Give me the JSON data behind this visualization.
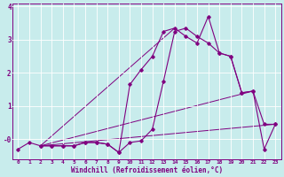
{
  "xlabel": "Windchill (Refroidissement éolien,°C)",
  "bg_color": "#c8ecec",
  "line_color": "#800080",
  "grid_color": "#aaaaaa",
  "ylim": [
    -0.6,
    4.1
  ],
  "xlim": [
    -0.5,
    23.5
  ],
  "yticks": [
    0,
    1,
    2,
    3,
    4
  ],
  "ytick_labels": [
    "-0",
    "1",
    "2",
    "3",
    "4"
  ],
  "xticks": [
    0,
    1,
    2,
    3,
    4,
    5,
    6,
    7,
    8,
    9,
    10,
    11,
    12,
    13,
    14,
    15,
    16,
    17,
    18,
    19,
    20,
    21,
    22,
    23
  ],
  "line1_x": [
    0,
    1,
    2,
    3,
    4,
    5,
    6,
    7,
    8,
    9,
    10,
    11,
    12,
    13,
    14,
    15,
    16,
    17,
    18,
    19,
    20,
    21,
    22,
    23
  ],
  "line1_y": [
    -0.3,
    -0.1,
    -0.2,
    -0.2,
    -0.2,
    -0.2,
    -0.1,
    -0.1,
    -0.15,
    -0.4,
    -0.1,
    -0.05,
    0.3,
    1.75,
    3.25,
    3.35,
    3.1,
    2.9,
    2.6,
    2.5,
    1.4,
    1.45,
    -0.3,
    0.45
  ],
  "line2_x": [
    2,
    3,
    4,
    5,
    6,
    7,
    8,
    9,
    10,
    11,
    12,
    13,
    14,
    15,
    16,
    17,
    18,
    19,
    20,
    21,
    22,
    23
  ],
  "line2_y": [
    -0.2,
    -0.2,
    -0.2,
    -0.2,
    -0.1,
    -0.1,
    -0.15,
    -0.4,
    1.65,
    2.1,
    2.5,
    3.25,
    3.35,
    3.1,
    2.9,
    3.7,
    2.6,
    2.5,
    1.4,
    1.45,
    0.45,
    0.45
  ],
  "line3_x": [
    2,
    23
  ],
  "line3_y": [
    -0.2,
    0.45
  ],
  "line4_x": [
    2,
    21
  ],
  "line4_y": [
    -0.2,
    1.45
  ],
  "line5_x": [
    2,
    14
  ],
  "line5_y": [
    -0.2,
    3.35
  ]
}
